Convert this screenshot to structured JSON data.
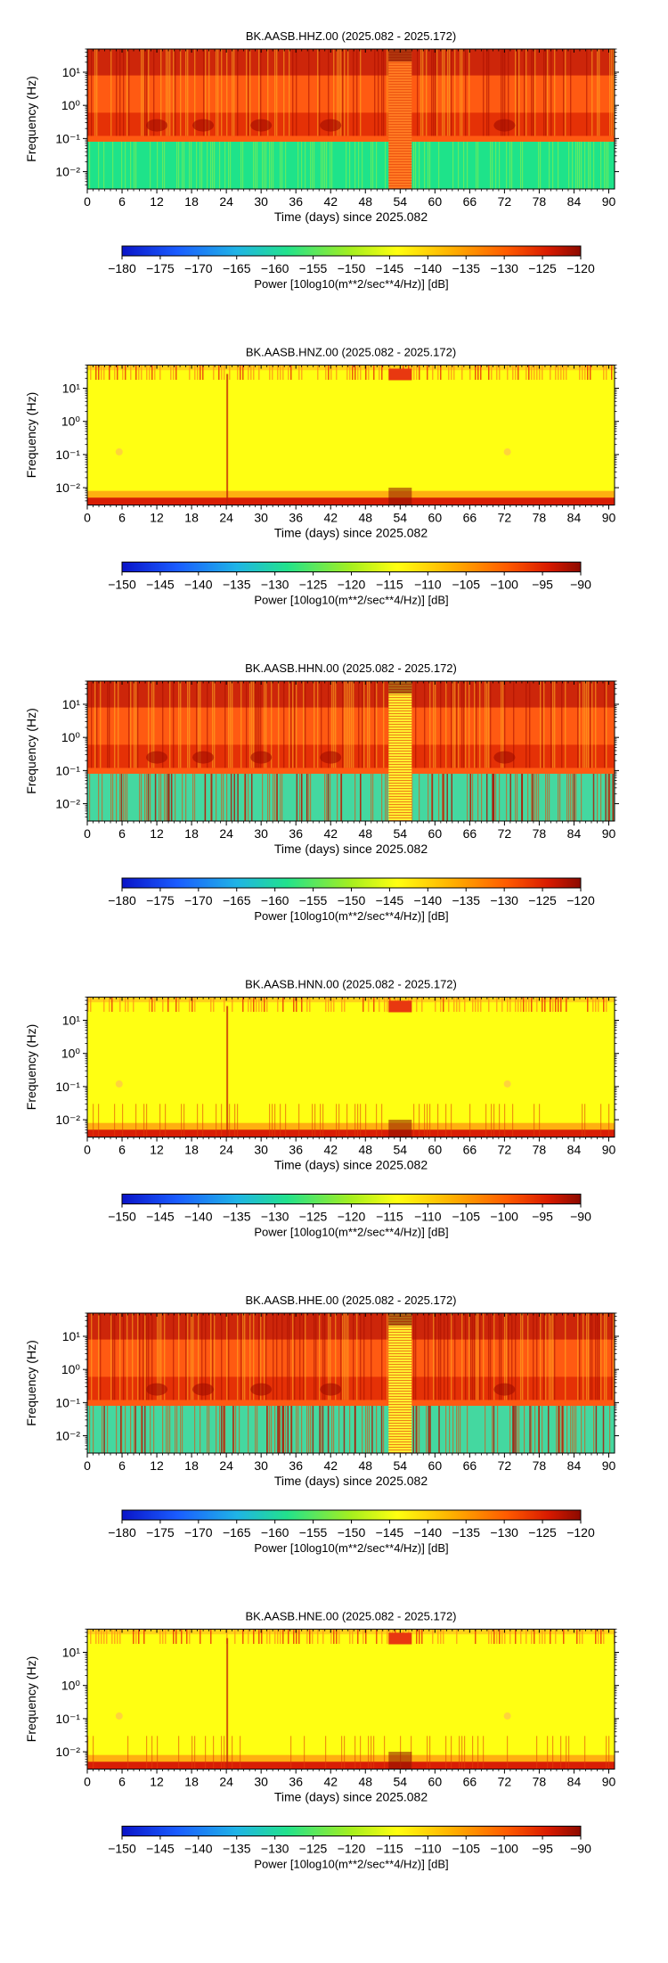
{
  "chart_data": [
    {
      "type": "heatmap",
      "title": "BK.AASB.HHZ.00 (2025.082 - 2025.172)",
      "xlabel": "Time (days) since 2025.082",
      "ylabel": "Frequency (Hz)",
      "xlim": [
        0,
        91
      ],
      "x_ticks": [
        0,
        6,
        12,
        18,
        24,
        30,
        36,
        42,
        48,
        54,
        60,
        66,
        72,
        78,
        84,
        90
      ],
      "y_scale": "log",
      "ylim": [
        0.003,
        50
      ],
      "y_ticks": [
        {
          "value": 0.01,
          "label": "10⁻²"
        },
        {
          "value": 0.1,
          "label": "10⁻¹"
        },
        {
          "value": 1,
          "label": "10⁰"
        },
        {
          "value": 10,
          "label": "10¹"
        }
      ],
      "colorbar": {
        "label": "Power [10log10(m**2/sec**4/Hz)] [dB]",
        "range": [
          -180,
          -120
        ],
        "ticks": [
          -180,
          -175,
          -170,
          -165,
          -160,
          -155,
          -150,
          -145,
          -140,
          -135,
          -130,
          -125,
          -120
        ]
      },
      "pattern": "noisy",
      "colors": {
        "low": "#1ee38a",
        "mid": "#ff7a1a",
        "high": "#c41a00"
      }
    },
    {
      "type": "heatmap",
      "title": "BK.AASB.HNZ.00 (2025.082 - 2025.172)",
      "xlabel": "Time (days) since 2025.082",
      "ylabel": "Frequency (Hz)",
      "xlim": [
        0,
        91
      ],
      "x_ticks": [
        0,
        6,
        12,
        18,
        24,
        30,
        36,
        42,
        48,
        54,
        60,
        66,
        72,
        78,
        84,
        90
      ],
      "y_scale": "log",
      "ylim": [
        0.003,
        50
      ],
      "y_ticks": [
        {
          "value": 0.01,
          "label": "10⁻²"
        },
        {
          "value": 0.1,
          "label": "10⁻¹"
        },
        {
          "value": 1,
          "label": "10⁰"
        },
        {
          "value": 10,
          "label": "10¹"
        }
      ],
      "colorbar": {
        "label": "Power [10log10(m**2/sec**4/Hz)] [dB]",
        "range": [
          -150,
          -90
        ],
        "ticks": [
          -150,
          -145,
          -140,
          -135,
          -130,
          -125,
          -120,
          -115,
          -110,
          -105,
          -100,
          -95,
          -90
        ]
      },
      "pattern": "quiet",
      "colors": {
        "low": "#ffff10",
        "mid": "#ff8c1a",
        "high": "#c41a00"
      }
    },
    {
      "type": "heatmap",
      "title": "BK.AASB.HHN.00 (2025.082 - 2025.172)",
      "xlabel": "Time (days) since 2025.082",
      "ylabel": "Frequency (Hz)",
      "xlim": [
        0,
        91
      ],
      "x_ticks": [
        0,
        6,
        12,
        18,
        24,
        30,
        36,
        42,
        48,
        54,
        60,
        66,
        72,
        78,
        84,
        90
      ],
      "y_scale": "log",
      "ylim": [
        0.003,
        50
      ],
      "y_ticks": [
        {
          "value": 0.01,
          "label": "10⁻²"
        },
        {
          "value": 0.1,
          "label": "10⁻¹"
        },
        {
          "value": 1,
          "label": "10⁰"
        },
        {
          "value": 10,
          "label": "10¹"
        }
      ],
      "colorbar": {
        "label": "Power [10log10(m**2/sec**4/Hz)] [dB]",
        "range": [
          -180,
          -120
        ],
        "ticks": [
          -180,
          -175,
          -170,
          -165,
          -160,
          -155,
          -150,
          -145,
          -140,
          -135,
          -130,
          -125,
          -120
        ]
      },
      "pattern": "noisy-horizontal",
      "colors": {
        "low": "#44d8a0",
        "mid": "#ff7a1a",
        "high": "#c41a00"
      }
    },
    {
      "type": "heatmap",
      "title": "BK.AASB.HNN.00 (2025.082 - 2025.172)",
      "xlabel": "Time (days) since 2025.082",
      "ylabel": "Frequency (Hz)",
      "xlim": [
        0,
        91
      ],
      "x_ticks": [
        0,
        6,
        12,
        18,
        24,
        30,
        36,
        42,
        48,
        54,
        60,
        66,
        72,
        78,
        84,
        90
      ],
      "y_scale": "log",
      "ylim": [
        0.003,
        50
      ],
      "y_ticks": [
        {
          "value": 0.01,
          "label": "10⁻²"
        },
        {
          "value": 0.1,
          "label": "10⁻¹"
        },
        {
          "value": 1,
          "label": "10⁰"
        },
        {
          "value": 10,
          "label": "10¹"
        }
      ],
      "colorbar": {
        "label": "Power [10log10(m**2/sec**4/Hz)] [dB]",
        "range": [
          -150,
          -90
        ],
        "ticks": [
          -150,
          -145,
          -140,
          -135,
          -130,
          -125,
          -120,
          -115,
          -110,
          -105,
          -100,
          -95,
          -90
        ]
      },
      "pattern": "quiet-horizontal",
      "colors": {
        "low": "#ffff10",
        "mid": "#ff8c1a",
        "high": "#c41a00"
      }
    },
    {
      "type": "heatmap",
      "title": "BK.AASB.HHE.00 (2025.082 - 2025.172)",
      "xlabel": "Time (days) since 2025.082",
      "ylabel": "Frequency (Hz)",
      "xlim": [
        0,
        91
      ],
      "x_ticks": [
        0,
        6,
        12,
        18,
        24,
        30,
        36,
        42,
        48,
        54,
        60,
        66,
        72,
        78,
        84,
        90
      ],
      "y_scale": "log",
      "ylim": [
        0.003,
        50
      ],
      "y_ticks": [
        {
          "value": 0.01,
          "label": "10⁻²"
        },
        {
          "value": 0.1,
          "label": "10⁻¹"
        },
        {
          "value": 1,
          "label": "10⁰"
        },
        {
          "value": 10,
          "label": "10¹"
        }
      ],
      "colorbar": {
        "label": "Power [10log10(m**2/sec**4/Hz)] [dB]",
        "range": [
          -180,
          -120
        ],
        "ticks": [
          -180,
          -175,
          -170,
          -165,
          -160,
          -155,
          -150,
          -145,
          -140,
          -135,
          -130,
          -125,
          -120
        ]
      },
      "pattern": "noisy-horizontal",
      "colors": {
        "low": "#44d8a0",
        "mid": "#ff7a1a",
        "high": "#c41a00"
      }
    },
    {
      "type": "heatmap",
      "title": "BK.AASB.HNE.00 (2025.082 - 2025.172)",
      "xlabel": "Time (days) since 2025.082",
      "ylabel": "Frequency (Hz)",
      "xlim": [
        0,
        91
      ],
      "x_ticks": [
        0,
        6,
        12,
        18,
        24,
        30,
        36,
        42,
        48,
        54,
        60,
        66,
        72,
        78,
        84,
        90
      ],
      "y_scale": "log",
      "ylim": [
        0.003,
        50
      ],
      "y_ticks": [
        {
          "value": 0.01,
          "label": "10⁻²"
        },
        {
          "value": 0.1,
          "label": "10⁻¹"
        },
        {
          "value": 1,
          "label": "10⁰"
        },
        {
          "value": 10,
          "label": "10¹"
        }
      ],
      "colorbar": {
        "label": "Power [10log10(m**2/sec**4/Hz)] [dB]",
        "range": [
          -150,
          -90
        ],
        "ticks": [
          -150,
          -145,
          -140,
          -135,
          -130,
          -125,
          -120,
          -115,
          -110,
          -105,
          -100,
          -95,
          -90
        ]
      },
      "pattern": "quiet-horizontal",
      "colors": {
        "low": "#ffff10",
        "mid": "#ff8c1a",
        "high": "#c41a00"
      }
    }
  ]
}
